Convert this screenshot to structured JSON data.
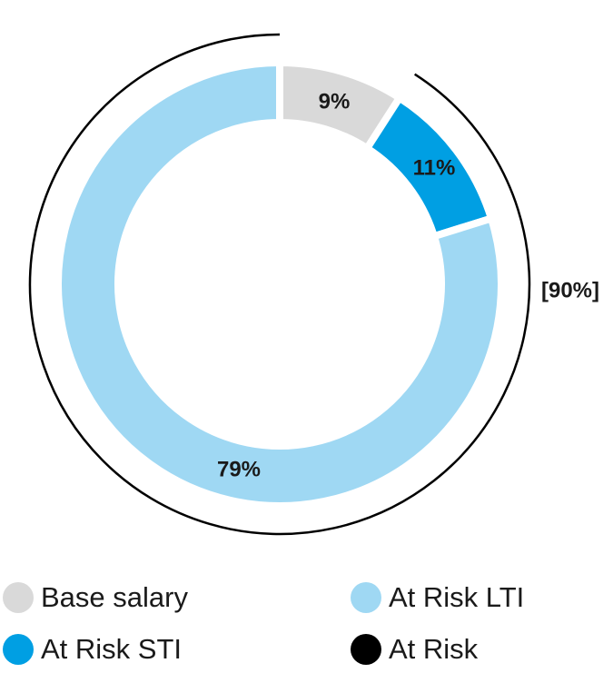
{
  "chart_data": {
    "type": "donut",
    "categories": [
      "Base salary",
      "At Risk STI",
      "At Risk LTI"
    ],
    "values": [
      9,
      11,
      79
    ],
    "value_labels": [
      "9%",
      "11%",
      "79%"
    ],
    "colors": [
      "#d9d9d9",
      "#009fe3",
      "#9fd8f3"
    ],
    "outer_arc": {
      "name": "At Risk",
      "color": "#000000",
      "value": 90,
      "value_label": "[90%]"
    }
  }
}
